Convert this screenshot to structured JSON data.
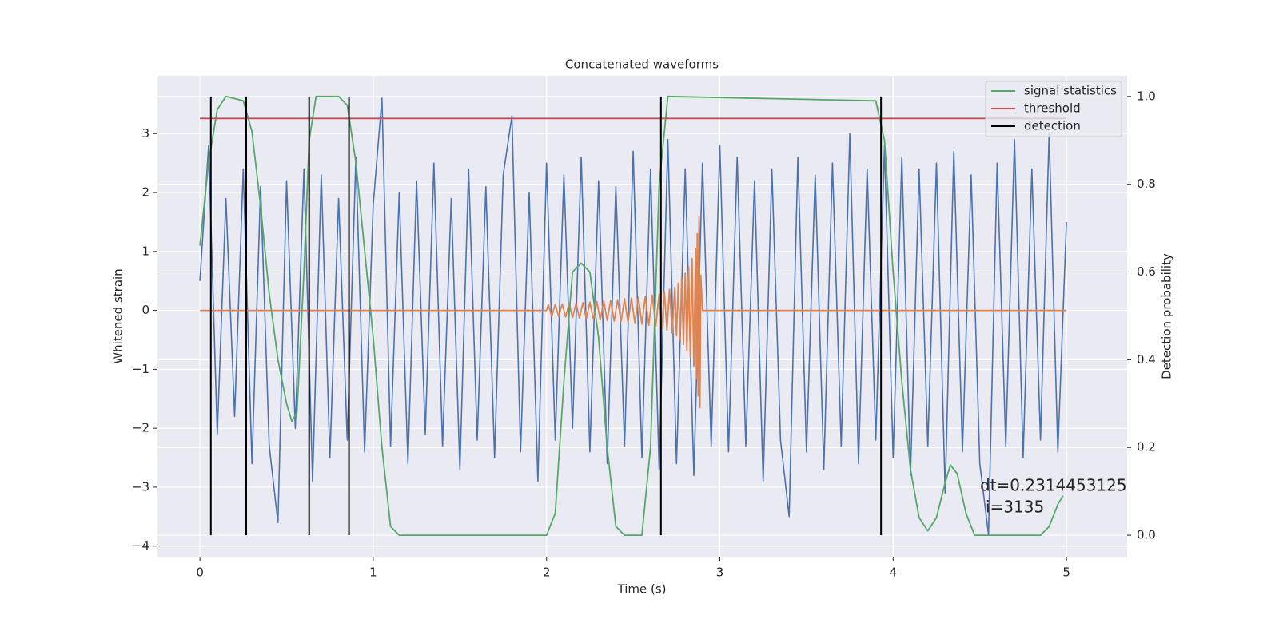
{
  "chart_data": {
    "type": "line",
    "title": "Concatenated waveforms",
    "xlabel": "Time (s)",
    "ylabel": "Whitened strain",
    "y2label": "Detection probability",
    "annotations": [
      "dt=0.2314453125",
      "i=3135"
    ],
    "xlim": [
      -0.245,
      5.35
    ],
    "ylim": [
      -4.18,
      3.98
    ],
    "y2lim": [
      -0.049,
      1.047
    ],
    "xticks": [
      0,
      1,
      2,
      3,
      4,
      5
    ],
    "yticks": [
      {
        "value": -4,
        "label": "−4"
      },
      {
        "value": -3,
        "label": "−3"
      },
      {
        "value": -2,
        "label": "−2"
      },
      {
        "value": -1,
        "label": "−1"
      },
      0,
      1,
      2,
      3
    ],
    "y2ticks": [
      {
        "value": 0,
        "label": "0.0"
      },
      {
        "value": 0.2,
        "label": "0.2"
      },
      {
        "value": 0.4,
        "label": "0.4"
      },
      {
        "value": 0.6,
        "label": "0.6"
      },
      {
        "value": 0.8,
        "label": "0.8"
      },
      {
        "value": 1,
        "label": "1.0"
      }
    ],
    "grid": true,
    "legend": "upper right",
    "series": [
      {
        "color": "#4c72b0",
        "kind": "line",
        "axis": "y",
        "x": [
          0,
          0.05,
          0.1,
          0.15,
          0.2,
          0.25,
          0.3,
          0.35,
          0.4,
          0.45,
          0.5,
          0.55,
          0.6,
          0.65,
          0.7,
          0.75,
          0.8,
          0.85,
          0.9,
          0.95,
          1,
          1.05,
          1.1,
          1.15,
          1.2,
          1.25,
          1.3,
          1.35,
          1.4,
          1.45,
          1.5,
          1.55,
          1.6,
          1.65,
          1.7,
          1.75,
          1.8,
          1.85,
          1.9,
          1.95,
          2,
          2.05,
          2.1,
          2.15,
          2.2,
          2.25,
          2.3,
          2.35,
          2.4,
          2.45,
          2.5,
          2.55,
          2.6,
          2.65,
          2.7,
          2.75,
          2.8,
          2.85,
          2.9,
          2.95,
          3,
          3.05,
          3.1,
          3.15,
          3.2,
          3.25,
          3.3,
          3.35,
          3.4,
          3.45,
          3.5,
          3.55,
          3.6,
          3.65,
          3.7,
          3.75,
          3.8,
          3.85,
          3.9,
          3.95,
          4,
          4.05,
          4.1,
          4.15,
          4.2,
          4.25,
          4.3,
          4.35,
          4.4,
          4.45,
          4.5,
          4.55,
          4.6,
          4.65,
          4.7,
          4.75,
          4.8,
          4.85,
          4.9,
          4.95,
          5
        ],
        "values": [
          0.5,
          2.8,
          -2.1,
          1.9,
          -1.8,
          2.4,
          -2.6,
          2.1,
          -2.3,
          -3.6,
          2.2,
          -2.0,
          2.4,
          -2.9,
          2.3,
          -2.5,
          1.9,
          -2.2,
          2.6,
          -2.4,
          1.8,
          3.6,
          -2.3,
          2.0,
          -2.6,
          2.2,
          -2.1,
          2.5,
          -2.3,
          1.9,
          -2.7,
          2.4,
          -2.2,
          2.1,
          -2.5,
          2.3,
          3.3,
          -2.4,
          2.0,
          -2.9,
          2.5,
          -2.2,
          2.3,
          -2.0,
          2.6,
          -2.4,
          2.2,
          -2.6,
          2.1,
          -2.3,
          2.7,
          -2.5,
          2.4,
          -2.7,
          2.9,
          -2.6,
          2.4,
          -2.8,
          2.5,
          -2.3,
          2.8,
          -2.4,
          2.6,
          -2.3,
          2.2,
          -2.9,
          2.4,
          -2.2,
          -3.5,
          2.6,
          -2.4,
          2.3,
          -2.7,
          2.5,
          -2.3,
          3.0,
          -2.6,
          2.4,
          -2.2,
          2.8,
          -2.5,
          2.6,
          -2.8,
          2.4,
          -2.3,
          2.5,
          -3.1,
          2.7,
          -2.4,
          2.3,
          -2.6,
          -3.8,
          2.5,
          -2.3,
          2.9,
          -2.5,
          2.4,
          -2.2,
          3.0,
          -2.4,
          1.5
        ]
      },
      {
        "color": "#dd8452",
        "kind": "line",
        "axis": "y",
        "x": [
          0,
          2.0,
          2.01,
          2.03,
          2.05,
          2.07,
          2.09,
          2.11,
          2.13,
          2.15,
          2.17,
          2.19,
          2.21,
          2.23,
          2.25,
          2.27,
          2.29,
          2.31,
          2.33,
          2.35,
          2.37,
          2.39,
          2.41,
          2.43,
          2.45,
          2.47,
          2.49,
          2.51,
          2.53,
          2.55,
          2.57,
          2.59,
          2.61,
          2.63,
          2.65,
          2.665,
          2.68,
          2.695,
          2.71,
          2.725,
          2.74,
          2.75,
          2.76,
          2.77,
          2.78,
          2.79,
          2.8,
          2.81,
          2.82,
          2.83,
          2.84,
          2.85,
          2.86,
          2.865,
          2.87,
          2.875,
          2.88,
          2.885,
          2.89,
          2.9,
          5
        ],
        "values": [
          0,
          0,
          0.1,
          -0.1,
          0.1,
          -0.1,
          0.11,
          -0.11,
          0.12,
          -0.12,
          0.12,
          -0.13,
          0.13,
          -0.14,
          0.14,
          -0.15,
          0.15,
          -0.16,
          0.16,
          -0.17,
          0.17,
          -0.18,
          0.18,
          -0.19,
          0.2,
          -0.2,
          0.21,
          -0.22,
          0.22,
          -0.23,
          0.24,
          -0.25,
          0.26,
          -0.27,
          0.28,
          -0.3,
          0.32,
          -0.34,
          0.36,
          -0.38,
          0.4,
          -0.43,
          0.46,
          -0.5,
          0.54,
          -0.58,
          0.63,
          -0.68,
          0.74,
          -0.8,
          0.88,
          -0.95,
          1.05,
          -1.15,
          1.3,
          -1.45,
          1.6,
          -1.65,
          0.6,
          0,
          0
        ]
      },
      {
        "name": "signal statistics",
        "color": "#55a868",
        "kind": "line",
        "axis": "y2",
        "x": [
          0,
          0.05,
          0.1,
          0.15,
          0.25,
          0.3,
          0.35,
          0.4,
          0.45,
          0.5,
          0.53,
          0.56,
          0.6,
          0.63,
          0.67,
          0.8,
          0.85,
          0.9,
          0.95,
          1.0,
          1.05,
          1.1,
          1.15,
          2.0,
          2.05,
          2.1,
          2.15,
          2.2,
          2.25,
          2.3,
          2.35,
          2.4,
          2.45,
          2.55,
          2.6,
          2.65,
          2.7,
          3.9,
          3.95,
          4.0,
          4.05,
          4.1,
          4.15,
          4.2,
          4.25,
          4.3,
          4.33,
          4.37,
          4.42,
          4.47,
          4.85,
          4.9,
          4.95,
          4.98
        ],
        "values": [
          0.66,
          0.85,
          0.97,
          1.0,
          0.99,
          0.92,
          0.75,
          0.55,
          0.4,
          0.3,
          0.26,
          0.28,
          0.6,
          0.9,
          1.0,
          1.0,
          0.98,
          0.85,
          0.65,
          0.45,
          0.2,
          0.02,
          0,
          0,
          0.05,
          0.35,
          0.6,
          0.62,
          0.6,
          0.45,
          0.2,
          0.02,
          0,
          0,
          0.2,
          0.8,
          1.0,
          0.99,
          0.9,
          0.6,
          0.35,
          0.15,
          0.04,
          0.01,
          0.04,
          0.12,
          0.16,
          0.14,
          0.05,
          0,
          0,
          0.02,
          0.07,
          0.09
        ]
      },
      {
        "name": "threshold",
        "color": "#c44e52",
        "kind": "line",
        "axis": "y2",
        "x": [
          0,
          5
        ],
        "values": [
          0.95,
          0.95
        ]
      },
      {
        "name": "detection",
        "color": "#000000",
        "kind": "vlines",
        "axis": "y2",
        "x": [
          0.063,
          0.267,
          0.63,
          0.86,
          2.66,
          3.93
        ],
        "values": [
          1,
          1,
          1,
          1,
          1,
          1
        ]
      }
    ]
  }
}
